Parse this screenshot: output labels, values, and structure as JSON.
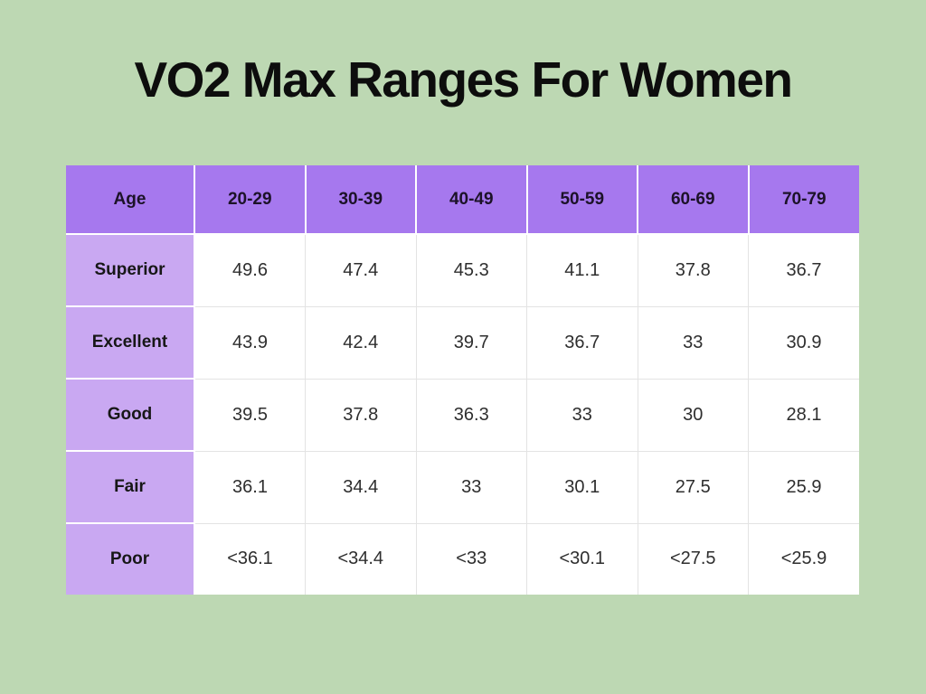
{
  "page": {
    "title": "VO2 Max Ranges For Women",
    "background_color": "#bdd8b3"
  },
  "colors": {
    "header_purple": "#a678ee",
    "label_purple": "#c9a8f2",
    "cell_white": "#ffffff",
    "grid_line": "#e3e3e3",
    "title_text": "#0d0d0d"
  },
  "table": {
    "header": [
      "Age",
      "20-29",
      "30-39",
      "40-49",
      "50-59",
      "60-69",
      "70-79"
    ],
    "rows": [
      {
        "label": "Superior",
        "values": [
          "49.6",
          "47.4",
          "45.3",
          "41.1",
          "37.8",
          "36.7"
        ]
      },
      {
        "label": "Excellent",
        "values": [
          "43.9",
          "42.4",
          "39.7",
          "36.7",
          "33",
          "30.9"
        ]
      },
      {
        "label": "Good",
        "values": [
          "39.5",
          "37.8",
          "36.3",
          "33",
          "30",
          "28.1"
        ]
      },
      {
        "label": "Fair",
        "values": [
          "36.1",
          "34.4",
          "33",
          "30.1",
          "27.5",
          "25.9"
        ]
      },
      {
        "label": "Poor",
        "values": [
          "<36.1",
          "<34.4",
          "<33",
          "<30.1",
          "<27.5",
          "<25.9"
        ]
      }
    ]
  },
  "chart_data": {
    "type": "table",
    "title": "VO2 Max Ranges For Women",
    "row_header": "Age",
    "categories": [
      "20-29",
      "30-39",
      "40-49",
      "50-59",
      "60-69",
      "70-79"
    ],
    "series": [
      {
        "name": "Superior",
        "values": [
          49.6,
          47.4,
          45.3,
          41.1,
          37.8,
          36.7
        ]
      },
      {
        "name": "Excellent",
        "values": [
          43.9,
          42.4,
          39.7,
          36.7,
          33,
          30.9
        ]
      },
      {
        "name": "Good",
        "values": [
          39.5,
          37.8,
          36.3,
          33,
          30,
          28.1
        ]
      },
      {
        "name": "Fair",
        "values": [
          36.1,
          34.4,
          33,
          30.1,
          27.5,
          25.9
        ]
      },
      {
        "name": "Poor",
        "values": [
          "<36.1",
          "<34.4",
          "<33",
          "<30.1",
          "<27.5",
          "<25.9"
        ]
      }
    ]
  }
}
